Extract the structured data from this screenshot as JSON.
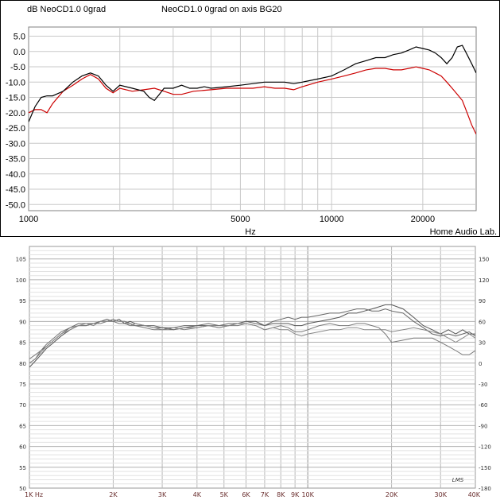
{
  "chart_data": [
    {
      "type": "line",
      "title_y": "dB NeoCD1.0 0grad",
      "title_red": "NeoCD1.0 0grad on axis BG20",
      "xlabel": "Hz",
      "credit": "Home Audio Lab.",
      "x_scale": "log",
      "xlim": [
        1000,
        30000
      ],
      "ylim": [
        -52,
        8
      ],
      "y_ticks": [
        "5.0",
        "0.0",
        "-5.0",
        "-10.0",
        "-15.0",
        "-20.0",
        "-25.0",
        "-30.0",
        "-35.0",
        "-40.0",
        "-45.0",
        "-50.0"
      ],
      "x_ticks": [
        "1000",
        "5000",
        "10000",
        "20000"
      ],
      "grid": true,
      "series": [
        {
          "color": "#000000",
          "x": [
            1000,
            1050,
            1100,
            1150,
            1200,
            1300,
            1400,
            1500,
            1600,
            1700,
            1800,
            1900,
            2000,
            2200,
            2400,
            2500,
            2600,
            2700,
            2800,
            3000,
            3200,
            3400,
            3600,
            3800,
            4000,
            4500,
            5000,
            5500,
            6000,
            6500,
            7000,
            7500,
            8000,
            9000,
            10000,
            11000,
            12000,
            13000,
            14000,
            15000,
            16000,
            17000,
            18000,
            19000,
            20000,
            21000,
            22000,
            23000,
            24000,
            25000,
            26000,
            27000,
            28000,
            29000,
            30000
          ],
          "values": [
            -23,
            -18,
            -15,
            -14.5,
            -14.5,
            -13,
            -10,
            -8,
            -7,
            -8,
            -11,
            -13,
            -11,
            -12,
            -13,
            -15,
            -16,
            -14,
            -12,
            -12,
            -11,
            -12,
            -12,
            -11.5,
            -12,
            -11.5,
            -11,
            -10.5,
            -10,
            -10,
            -10,
            -10.5,
            -10,
            -9,
            -8,
            -6,
            -4,
            -3,
            -2,
            -2,
            -1,
            -0.5,
            0.5,
            1.5,
            1,
            0.5,
            -0.5,
            -2,
            -4,
            -2,
            1.5,
            2,
            -1,
            -4,
            -7
          ]
        },
        {
          "color": "#cc0000",
          "x": [
            1000,
            1050,
            1100,
            1150,
            1200,
            1300,
            1400,
            1500,
            1600,
            1700,
            1800,
            1900,
            2000,
            2200,
            2400,
            2600,
            2800,
            3000,
            3200,
            3500,
            4000,
            4500,
            5000,
            5500,
            6000,
            6500,
            7000,
            7500,
            8000,
            9000,
            10000,
            11000,
            12000,
            13000,
            14000,
            15000,
            16000,
            17000,
            18000,
            19000,
            20000,
            21000,
            22000,
            23000,
            24000,
            25000,
            26000,
            27000,
            28000,
            29000,
            30000
          ],
          "values": [
            -20,
            -19,
            -19,
            -20,
            -17,
            -13,
            -11,
            -9,
            -7.5,
            -9,
            -12,
            -13.5,
            -12,
            -13,
            -12.5,
            -12,
            -13,
            -14,
            -14,
            -13,
            -12.5,
            -12,
            -12,
            -12,
            -11.5,
            -12,
            -12,
            -12.5,
            -11.5,
            -10,
            -9,
            -8,
            -7,
            -6,
            -5.5,
            -5.5,
            -6,
            -6,
            -5.5,
            -5,
            -5.5,
            -6,
            -7,
            -8,
            -10,
            -12,
            -14,
            -16,
            -20,
            -24,
            -27
          ]
        }
      ]
    },
    {
      "type": "line",
      "watermark": "LMS",
      "x_scale": "log",
      "xlim": [
        1000,
        40000
      ],
      "ylim": [
        50,
        108
      ],
      "y_ticks_left": [
        "105",
        "100",
        "95",
        "90",
        "85",
        "80",
        "75",
        "70",
        "65",
        "60",
        "55",
        "50"
      ],
      "y_ticks_right": [
        "150",
        "120",
        "90",
        "60",
        "30",
        "0",
        "-30",
        "-60",
        "-90",
        "-120",
        "-150",
        "-180"
      ],
      "x_ticks": [
        "1K Hz",
        "2K",
        "3K",
        "4K",
        "5K",
        "6K",
        "7K",
        "8K",
        "9K",
        "10K",
        "20K",
        "30K",
        "40K"
      ],
      "grid": true,
      "series": [
        {
          "color": "#555555",
          "x": [
            1000,
            1050,
            1100,
            1150,
            1200,
            1300,
            1400,
            1500,
            1600,
            1700,
            1800,
            1900,
            2000,
            2100,
            2200,
            2300,
            2400,
            2600,
            2800,
            3000,
            3300,
            3600,
            4000,
            4400,
            4800,
            5200,
            5600,
            6000,
            6500,
            7000,
            7500,
            8000,
            8500,
            9000,
            9500,
            10000,
            11000,
            12000,
            13000,
            14000,
            15000,
            16000,
            17000,
            18000,
            19000,
            20000,
            22000,
            24000,
            26000,
            28000,
            30000,
            32000,
            34000,
            36000,
            38000,
            40000
          ],
          "values": [
            79,
            80.5,
            82,
            83.5,
            84.5,
            86.5,
            88,
            89,
            89,
            89.5,
            90,
            90.5,
            90,
            90.5,
            89.5,
            90,
            89.5,
            89,
            88.5,
            88.5,
            88,
            88.5,
            89,
            89,
            88.5,
            89,
            89.5,
            90,
            90,
            89,
            89.5,
            89.5,
            89.5,
            89,
            89,
            89.5,
            90,
            90.5,
            91,
            92,
            92,
            92.5,
            93,
            93.5,
            94,
            94,
            93,
            91,
            89,
            88,
            87,
            88,
            87,
            88,
            87,
            87
          ]
        },
        {
          "color": "#666666",
          "x": [
            1000,
            1050,
            1100,
            1150,
            1200,
            1300,
            1400,
            1500,
            1600,
            1700,
            1800,
            1900,
            2000,
            2100,
            2200,
            2300,
            2400,
            2600,
            2800,
            3000,
            3300,
            3600,
            4000,
            4400,
            4800,
            5200,
            5600,
            6000,
            6500,
            7000,
            7500,
            8000,
            8500,
            9000,
            9500,
            10000,
            11000,
            12000,
            13000,
            14000,
            15000,
            16000,
            17000,
            18000,
            19000,
            20000,
            22000,
            24000,
            26000,
            28000,
            30000,
            32000,
            34000,
            36000,
            38000,
            40000
          ],
          "values": [
            80,
            81,
            83,
            84,
            85,
            87,
            88.5,
            89.5,
            89.5,
            89.5,
            90,
            90,
            90.5,
            90,
            90,
            89.5,
            89,
            89,
            89,
            88.5,
            88.5,
            89,
            89,
            89.5,
            89,
            89.5,
            89.5,
            90,
            89.5,
            89,
            90,
            90.5,
            91,
            90.5,
            91,
            91,
            91.5,
            92,
            92,
            92.5,
            93,
            93,
            92.5,
            92.5,
            93,
            92.5,
            92,
            90,
            88.5,
            87,
            86.5,
            87,
            86.5,
            87,
            87.5,
            86.5
          ]
        },
        {
          "color": "#777777",
          "x": [
            1000,
            1050,
            1100,
            1150,
            1200,
            1300,
            1400,
            1500,
            1600,
            1700,
            1800,
            1900,
            2000,
            2100,
            2200,
            2300,
            2400,
            2600,
            2800,
            3000,
            3300,
            3600,
            4000,
            4400,
            4800,
            5200,
            5600,
            6000,
            6500,
            7000,
            7500,
            8000,
            8500,
            9000,
            9500,
            10000,
            11000,
            12000,
            13000,
            14000,
            15000,
            16000,
            17000,
            18000,
            19000,
            20000,
            22000,
            24000,
            26000,
            28000,
            30000,
            32000,
            34000,
            36000,
            38000,
            40000
          ],
          "values": [
            81,
            82,
            83,
            84.5,
            85.5,
            87.5,
            88.5,
            89,
            89,
            89.5,
            89.5,
            90,
            90,
            89.5,
            89.5,
            89,
            89,
            88.5,
            88,
            88,
            88,
            88.5,
            88.5,
            89,
            89,
            89,
            89,
            89.5,
            89,
            88,
            88.5,
            89,
            88.5,
            87.5,
            87.5,
            88,
            89,
            89.5,
            89,
            89,
            89.5,
            89.5,
            89,
            88.5,
            87,
            85,
            85.5,
            86,
            86,
            86,
            85,
            84,
            83,
            82,
            82,
            83
          ]
        },
        {
          "color": "#888888",
          "x": [
            1000,
            1050,
            1100,
            1150,
            1200,
            1300,
            1400,
            1500,
            1600,
            1700,
            1800,
            1900,
            2000,
            2100,
            2200,
            2300,
            2400,
            2600,
            2800,
            3000,
            3300,
            3600,
            4000,
            4400,
            4800,
            5200,
            5600,
            6000,
            6500,
            7000,
            7500,
            8000,
            8500,
            9000,
            9500,
            10000,
            11000,
            12000,
            13000,
            14000,
            15000,
            16000,
            17000,
            18000,
            19000,
            20000,
            22000,
            24000,
            26000,
            28000,
            30000,
            32000,
            34000,
            36000,
            38000,
            40000
          ],
          "values": [
            80,
            81,
            82.5,
            84,
            85,
            87,
            88,
            89,
            89.5,
            89,
            90,
            90,
            90.5,
            90,
            90,
            89,
            89.5,
            89,
            88.5,
            88,
            88.5,
            88,
            88.5,
            89,
            88.5,
            89,
            89.5,
            89.5,
            89,
            88,
            88.5,
            88,
            88,
            87,
            86.5,
            87,
            87.5,
            88,
            88,
            88.5,
            88.5,
            88,
            88,
            88,
            88,
            87.5,
            88,
            88.5,
            88,
            87.5,
            87,
            86,
            85,
            86,
            87,
            86
          ]
        }
      ]
    }
  ]
}
